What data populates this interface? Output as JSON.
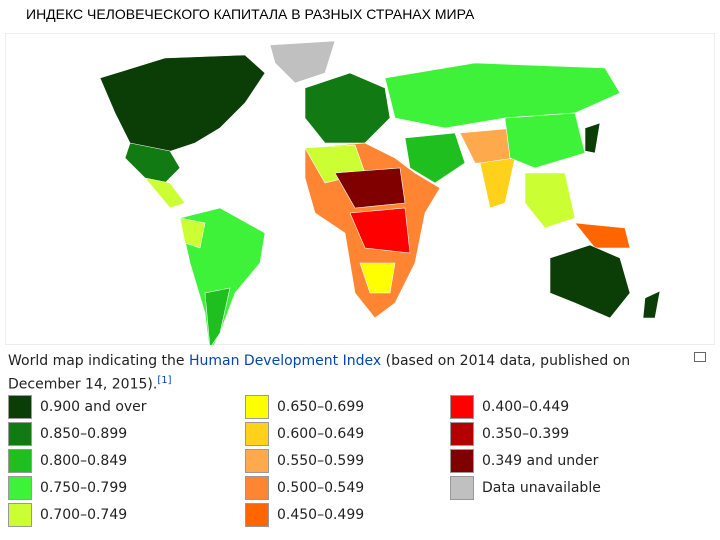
{
  "header": {
    "title": "ИНДЕКС ЧЕЛОВЕЧЕСКОГО КАПИТАЛА В РАЗНЫХ СТРАНАХ МИРА"
  },
  "caption": {
    "before": "World map indicating the ",
    "link": "Human Development Index",
    "after": " (based on 2014 data, published on December 14, 2015).",
    "ref": "[1]"
  },
  "legend": {
    "items": [
      {
        "label": "0.900 and over",
        "color": "#0b3d06"
      },
      {
        "label": "0.850–0.899",
        "color": "#127a12"
      },
      {
        "label": "0.800–0.849",
        "color": "#1fbf1f"
      },
      {
        "label": "0.750–0.799",
        "color": "#3ef23a"
      },
      {
        "label": "0.700–0.749",
        "color": "#ccff33"
      },
      {
        "label": "0.650–0.699",
        "color": "#ffff00"
      },
      {
        "label": "0.600–0.649",
        "color": "#ffd11a"
      },
      {
        "label": "0.550–0.599",
        "color": "#ffa94d"
      },
      {
        "label": "0.500–0.549",
        "color": "#ff8533"
      },
      {
        "label": "0.450–0.499",
        "color": "#ff6600"
      },
      {
        "label": "0.400–0.449",
        "color": "#ff0000"
      },
      {
        "label": "0.350–0.399",
        "color": "#b30000"
      },
      {
        "label": "0.349 and under",
        "color": "#800000"
      },
      {
        "label": "Data unavailable",
        "color": "#c0c0c0"
      }
    ]
  }
}
